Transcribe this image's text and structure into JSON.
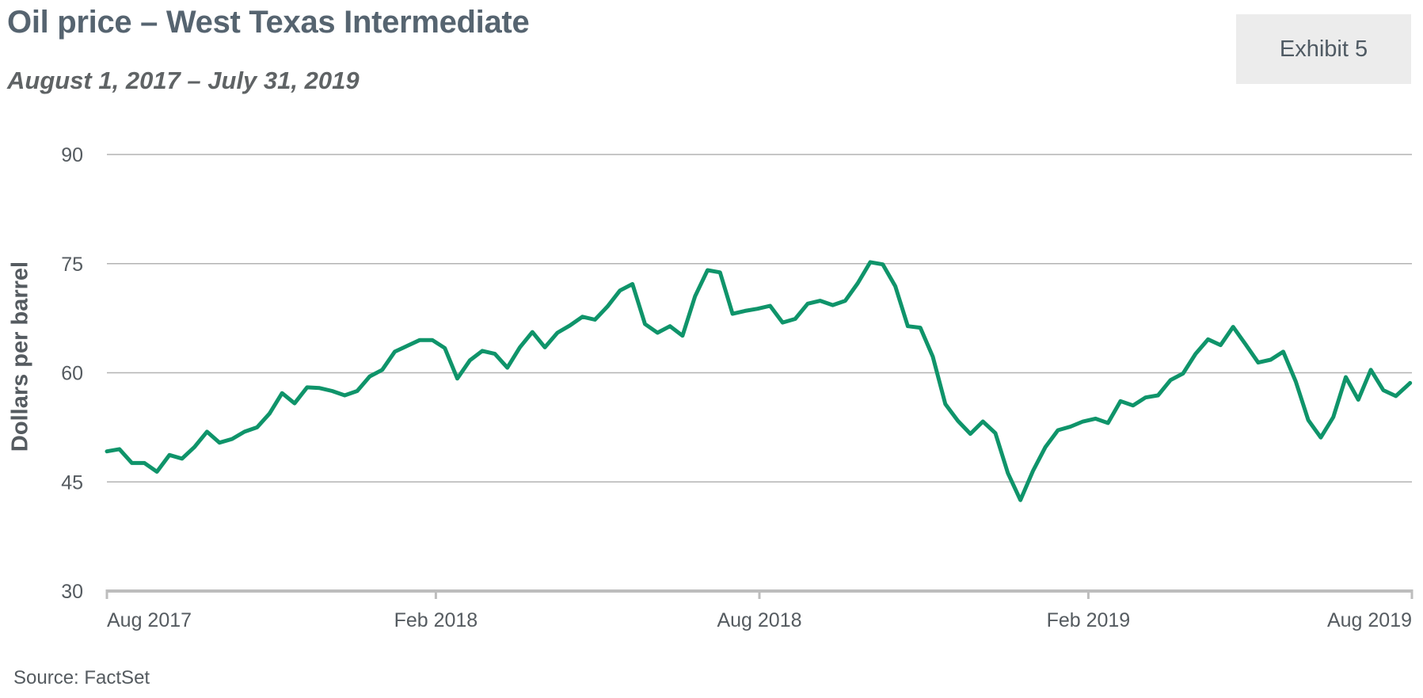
{
  "header": {
    "title": "Oil price – West Texas Intermediate",
    "subtitle": "August 1, 2017 – July 31, 2019",
    "exhibit_label": "Exhibit 5"
  },
  "footer": {
    "source": "Source: FactSet"
  },
  "colors": {
    "line": "#0f946a",
    "grid": "#b3b3b3",
    "axis": "#bdbdbd",
    "text": "#555b60"
  },
  "chart_data": {
    "type": "line",
    "title": "Oil price – West Texas Intermediate",
    "subtitle": "August 1, 2017 – July 31, 2019",
    "xlabel": "",
    "ylabel": "Dollars per barrel",
    "ylim": [
      30,
      90
    ],
    "yticks": [
      30,
      45,
      60,
      75,
      90
    ],
    "xlim": [
      "2017-08-01",
      "2019-08-01"
    ],
    "xticks": [
      {
        "date": "2017-08-01",
        "label": "Aug 2017"
      },
      {
        "date": "2018-02-01",
        "label": "Feb 2018"
      },
      {
        "date": "2018-08-01",
        "label": "Aug 2018"
      },
      {
        "date": "2019-02-01",
        "label": "Feb 2019"
      },
      {
        "date": "2019-08-01",
        "label": "Aug 2019"
      }
    ],
    "grid": true,
    "legend": "none",
    "series": [
      {
        "points": [
          [
            "2017-08-01",
            49.2
          ],
          [
            "2017-08-08",
            49.5
          ],
          [
            "2017-08-15",
            47.6
          ],
          [
            "2017-08-22",
            47.6
          ],
          [
            "2017-08-29",
            46.4
          ],
          [
            "2017-09-05",
            48.7
          ],
          [
            "2017-09-12",
            48.2
          ],
          [
            "2017-09-19",
            49.8
          ],
          [
            "2017-09-26",
            51.9
          ],
          [
            "2017-10-03",
            50.4
          ],
          [
            "2017-10-10",
            50.9
          ],
          [
            "2017-10-17",
            51.9
          ],
          [
            "2017-10-24",
            52.5
          ],
          [
            "2017-10-31",
            54.4
          ],
          [
            "2017-11-07",
            57.2
          ],
          [
            "2017-11-14",
            55.8
          ],
          [
            "2017-11-21",
            58.0
          ],
          [
            "2017-11-28",
            57.9
          ],
          [
            "2017-12-05",
            57.5
          ],
          [
            "2017-12-12",
            56.9
          ],
          [
            "2017-12-19",
            57.5
          ],
          [
            "2017-12-26",
            59.5
          ],
          [
            "2018-01-02",
            60.4
          ],
          [
            "2018-01-09",
            62.9
          ],
          [
            "2018-01-16",
            63.7
          ],
          [
            "2018-01-23",
            64.5
          ],
          [
            "2018-01-30",
            64.5
          ],
          [
            "2018-02-06",
            63.4
          ],
          [
            "2018-02-13",
            59.2
          ],
          [
            "2018-02-20",
            61.7
          ],
          [
            "2018-02-27",
            63.0
          ],
          [
            "2018-03-06",
            62.6
          ],
          [
            "2018-03-13",
            60.7
          ],
          [
            "2018-03-20",
            63.5
          ],
          [
            "2018-03-27",
            65.6
          ],
          [
            "2018-04-03",
            63.5
          ],
          [
            "2018-04-10",
            65.5
          ],
          [
            "2018-04-17",
            66.5
          ],
          [
            "2018-04-24",
            67.7
          ],
          [
            "2018-05-01",
            67.3
          ],
          [
            "2018-05-08",
            69.1
          ],
          [
            "2018-05-15",
            71.3
          ],
          [
            "2018-05-22",
            72.2
          ],
          [
            "2018-05-29",
            66.7
          ],
          [
            "2018-06-05",
            65.5
          ],
          [
            "2018-06-12",
            66.4
          ],
          [
            "2018-06-19",
            65.1
          ],
          [
            "2018-06-26",
            70.5
          ],
          [
            "2018-07-03",
            74.1
          ],
          [
            "2018-07-10",
            73.8
          ],
          [
            "2018-07-17",
            68.1
          ],
          [
            "2018-07-24",
            68.5
          ],
          [
            "2018-07-31",
            68.8
          ],
          [
            "2018-08-07",
            69.2
          ],
          [
            "2018-08-14",
            66.9
          ],
          [
            "2018-08-21",
            67.4
          ],
          [
            "2018-08-28",
            69.5
          ],
          [
            "2018-09-04",
            69.9
          ],
          [
            "2018-09-11",
            69.3
          ],
          [
            "2018-09-18",
            69.9
          ],
          [
            "2018-09-25",
            72.3
          ],
          [
            "2018-10-02",
            75.2
          ],
          [
            "2018-10-09",
            74.9
          ],
          [
            "2018-10-16",
            71.9
          ],
          [
            "2018-10-23",
            66.4
          ],
          [
            "2018-10-30",
            66.2
          ],
          [
            "2018-11-06",
            62.2
          ],
          [
            "2018-11-13",
            55.7
          ],
          [
            "2018-11-20",
            53.4
          ],
          [
            "2018-11-27",
            51.6
          ],
          [
            "2018-12-04",
            53.3
          ],
          [
            "2018-12-11",
            51.7
          ],
          [
            "2018-12-18",
            46.2
          ],
          [
            "2018-12-25",
            42.5
          ],
          [
            "2019-01-01",
            46.5
          ],
          [
            "2019-01-08",
            49.8
          ],
          [
            "2019-01-15",
            52.1
          ],
          [
            "2019-01-22",
            52.6
          ],
          [
            "2019-01-29",
            53.3
          ],
          [
            "2019-02-05",
            53.7
          ],
          [
            "2019-02-12",
            53.1
          ],
          [
            "2019-02-19",
            56.1
          ],
          [
            "2019-02-26",
            55.5
          ],
          [
            "2019-03-05",
            56.6
          ],
          [
            "2019-03-12",
            56.9
          ],
          [
            "2019-03-19",
            59.0
          ],
          [
            "2019-03-26",
            59.9
          ],
          [
            "2019-04-02",
            62.6
          ],
          [
            "2019-04-09",
            64.6
          ],
          [
            "2019-04-16",
            63.8
          ],
          [
            "2019-04-23",
            66.3
          ],
          [
            "2019-04-30",
            63.9
          ],
          [
            "2019-05-07",
            61.4
          ],
          [
            "2019-05-14",
            61.8
          ],
          [
            "2019-05-21",
            62.9
          ],
          [
            "2019-05-28",
            58.8
          ],
          [
            "2019-06-04",
            53.5
          ],
          [
            "2019-06-11",
            51.1
          ],
          [
            "2019-06-18",
            53.9
          ],
          [
            "2019-06-25",
            59.4
          ],
          [
            "2019-07-02",
            56.3
          ],
          [
            "2019-07-09",
            60.4
          ],
          [
            "2019-07-16",
            57.6
          ],
          [
            "2019-07-23",
            56.8
          ],
          [
            "2019-07-31",
            58.6
          ]
        ]
      }
    ]
  }
}
